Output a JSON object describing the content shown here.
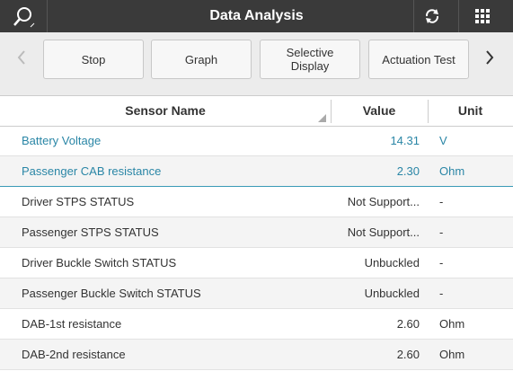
{
  "header": {
    "title": "Data Analysis"
  },
  "toolbar": {
    "buttons": [
      "Stop",
      "Graph",
      "Selective Display",
      "Actuation Test"
    ]
  },
  "table": {
    "columns": [
      "Sensor Name",
      "Value",
      "Unit"
    ],
    "rows": [
      [
        "Battery Voltage",
        "14.31",
        "V"
      ],
      [
        "Passenger CAB resistance",
        "2.30",
        "Ohm"
      ],
      [
        "Driver STPS STATUS",
        "Not Support...",
        "-"
      ],
      [
        "Passenger STPS STATUS",
        "Not Support...",
        "-"
      ],
      [
        "Driver Buckle Switch STATUS",
        "Unbuckled",
        "-"
      ],
      [
        "Passenger Buckle Switch STATUS",
        "Unbuckled",
        "-"
      ],
      [
        "DAB-1st resistance",
        "2.60",
        "Ohm"
      ],
      [
        "DAB-2nd resistance",
        "2.60",
        "Ohm"
      ]
    ]
  }
}
